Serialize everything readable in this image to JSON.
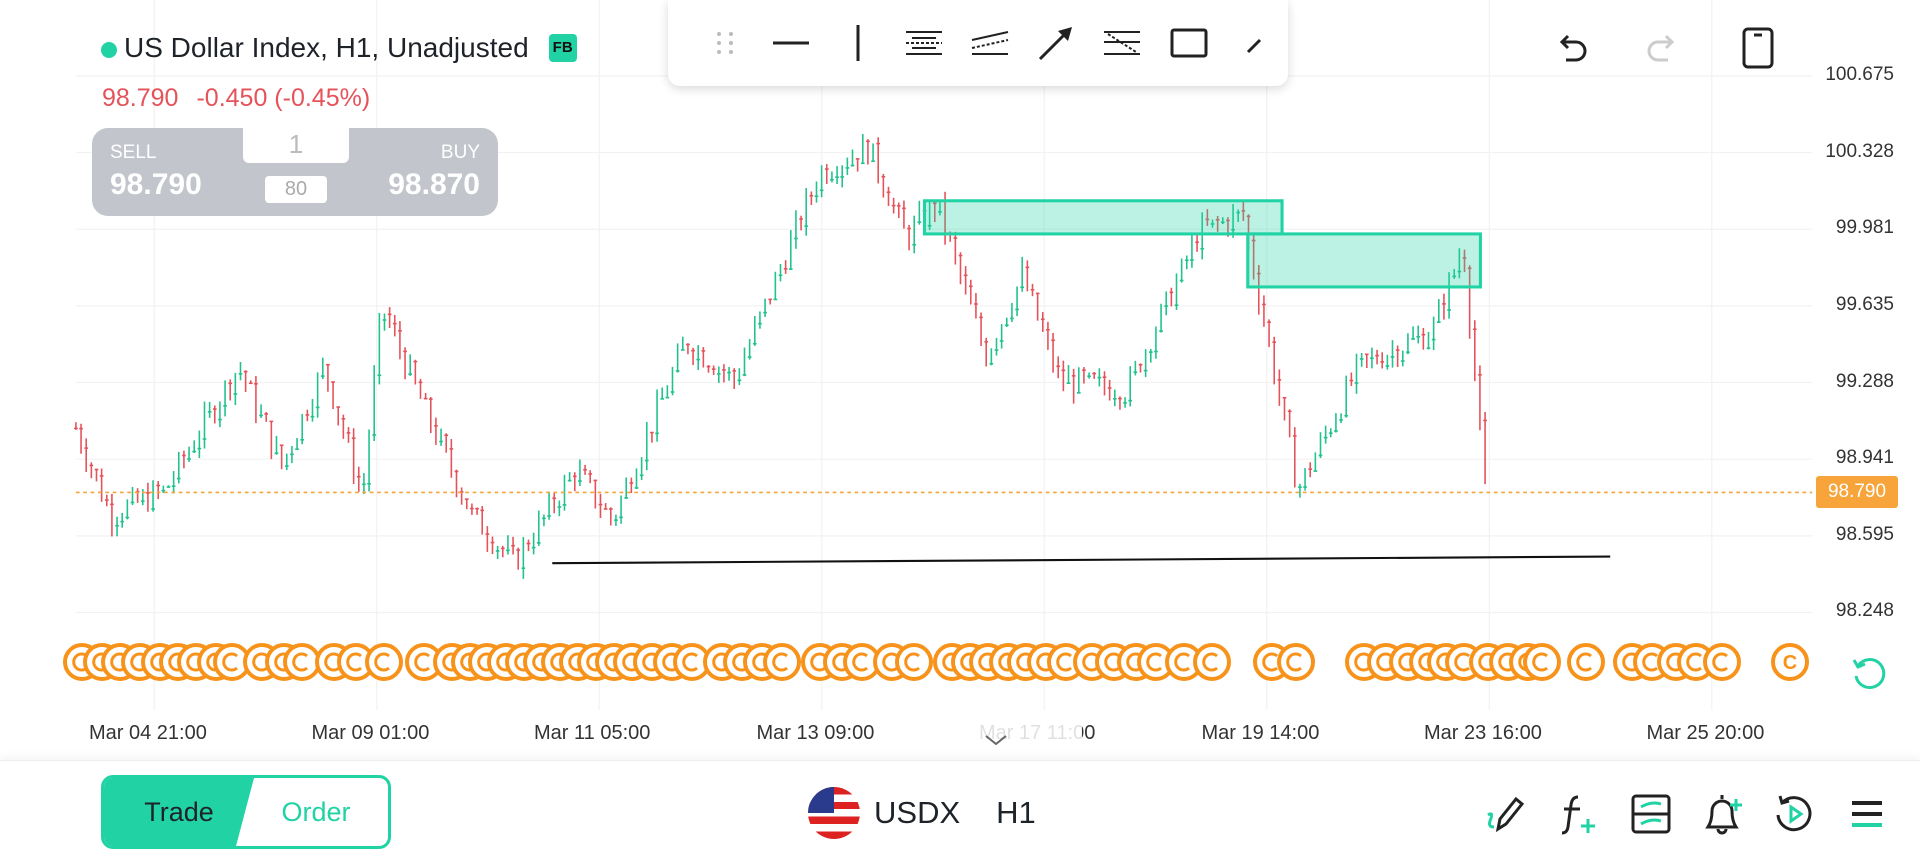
{
  "header": {
    "title": "US Dollar Index, H1, Unadjusted",
    "badge": "FB",
    "last_price": "98.790",
    "change": "-0.450 (-0.45%)"
  },
  "trade_box": {
    "sell_label": "SELL",
    "sell_price": "98.790",
    "buy_label": "BUY",
    "buy_price": "98.870",
    "quantity": "1",
    "spread": "80"
  },
  "drawing_toolbar": [
    "drag-handle-icon",
    "horizontal-line-icon",
    "vertical-line-icon",
    "parallel-channel-icon",
    "trend-channel-icon",
    "arrow-icon",
    "fib-icon",
    "rectangle-icon",
    "brush-icon"
  ],
  "top_actions": [
    "undo-icon",
    "redo-icon",
    "phone-orientation-icon"
  ],
  "price_axis": [
    "100.675",
    "100.328",
    "99.981",
    "99.635",
    "99.288",
    "98.941",
    "98.595",
    "98.248"
  ],
  "current_price_tag": "98.790",
  "time_axis": [
    "Mar 04 21:00",
    "Mar 09 01:00",
    "Mar 11 05:00",
    "Mar 13 09:00",
    "Mar 17 11:00",
    "Mar 19 14:00",
    "Mar 23 16:00",
    "Mar 25 20:00"
  ],
  "event_marker_glyph": "C",
  "colors": {
    "up": "#21c28e",
    "down": "#e5535a",
    "accent": "#21d3a4",
    "price_line": "#f7a43a",
    "event": "#f7931a"
  },
  "chart_data": {
    "type": "candlestick",
    "approx_price_path": [
      [
        "Mar 04",
        99.08
      ],
      [
        "Mar 05",
        98.69
      ],
      [
        "Mar 06",
        99.36
      ],
      [
        "Mar 06",
        98.91
      ],
      [
        "Mar 06",
        99.36
      ],
      [
        "Mar 09",
        98.77
      ],
      [
        "Mar 09",
        99.63
      ],
      [
        "Mar 10",
        98.69
      ],
      [
        "Mar 10",
        98.47
      ],
      [
        "Mar 11",
        98.89
      ],
      [
        "Mar 11",
        98.66
      ],
      [
        "Mar 12",
        99.47
      ],
      [
        "Mar 12",
        99.3
      ],
      [
        "Mar 13",
        100.24
      ],
      [
        "Mar 13",
        100.35
      ],
      [
        "Mar 16",
        99.94
      ],
      [
        "Mar 16",
        100.1
      ],
      [
        "Mar 17",
        99.41
      ],
      [
        "Mar 17",
        99.77
      ],
      [
        "Mar 18",
        99.25
      ],
      [
        "Mar 18",
        99.97
      ],
      [
        "Mar 19",
        100.05
      ],
      [
        "Mar 19",
        98.8
      ],
      [
        "Mar 20",
        99.36
      ],
      [
        "Mar 23",
        99.91
      ],
      [
        "Mar 23",
        98.79
      ]
    ],
    "ylim": [
      98.248,
      100.675
    ],
    "zones": [
      {
        "from": "Mar 16",
        "to": "Mar 19",
        "low": 99.96,
        "high": 100.11
      },
      {
        "from": "Mar 19",
        "to": "Mar 23",
        "low": 99.72,
        "high": 99.96
      }
    ],
    "support_line": {
      "from": [
        "Mar 10",
        98.47
      ],
      "to": [
        "Mar 25",
        98.5
      ]
    }
  },
  "bottom_bar": {
    "trade_label": "Trade",
    "order_label": "Order",
    "symbol": "USDX",
    "timeframe": "H1",
    "icons": [
      "draw-icon",
      "indicator-icon",
      "template-icon",
      "alert-add-icon",
      "replay-icon",
      "menu-icon"
    ]
  }
}
